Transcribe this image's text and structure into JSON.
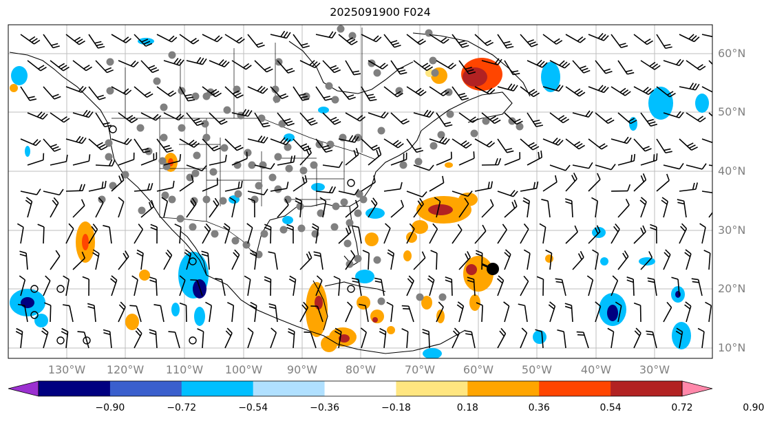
{
  "title": "2025091900 F024",
  "latitude_labels": [
    "60°N",
    "50°N",
    "40°N",
    "30°N",
    "20°N",
    "10°N"
  ],
  "longitude_labels": [
    "130°W",
    "120°W",
    "110°W",
    "100°W",
    "90°W",
    "80°W",
    "70°W",
    "60°W",
    "50°W",
    "40°W",
    "30°W"
  ],
  "colorbar": {
    "ticks": [
      "−0.90",
      "−0.72",
      "−0.54",
      "−0.36",
      "−0.18",
      "0.18",
      "0.36",
      "0.54",
      "0.72",
      "0.90"
    ],
    "colors": [
      "#9b30d0",
      "#000080",
      "#3a5fcd",
      "#00bfff",
      "#b0e0ff",
      "#ffffff",
      "#ffe680",
      "#ffa500",
      "#ff4500",
      "#b22222",
      "#ff88aa"
    ]
  }
}
